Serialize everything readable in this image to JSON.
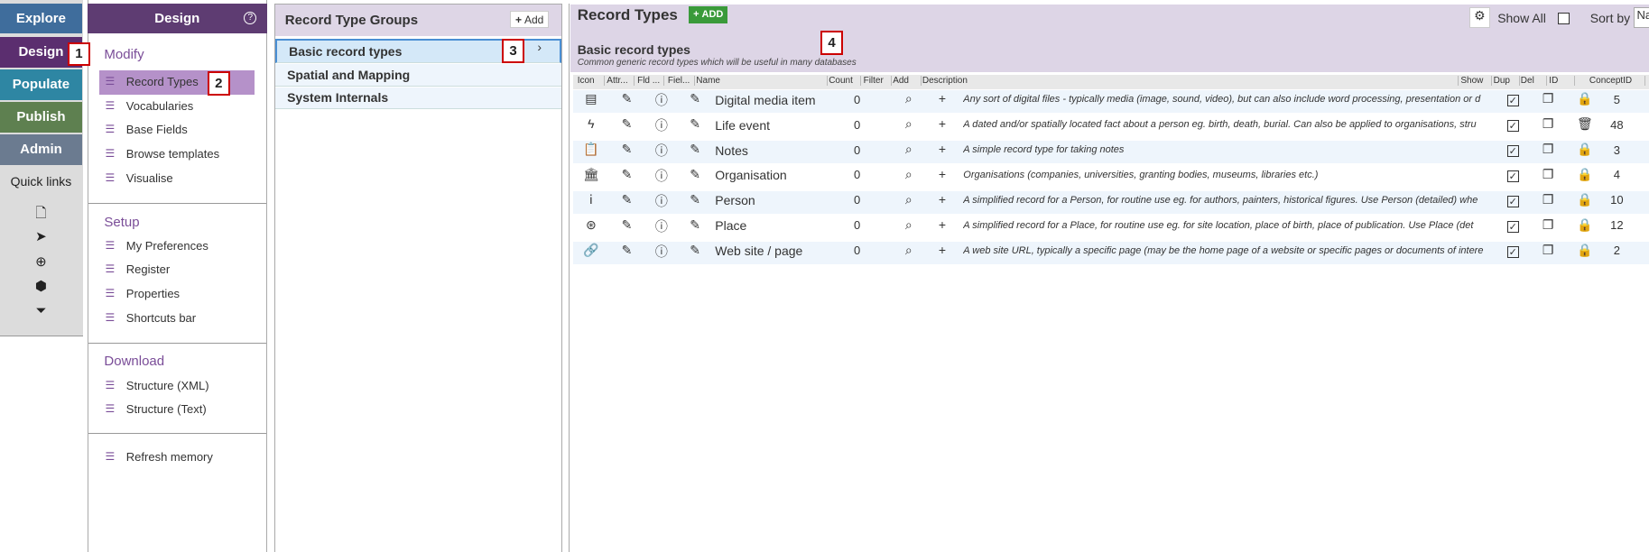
{
  "nav": {
    "items": [
      "Explore",
      "Design",
      "Populate",
      "Publish",
      "Admin"
    ],
    "quick_links_title": "Quick links"
  },
  "design_menu": {
    "title": "Design",
    "sections": [
      {
        "title": "Modify",
        "items": [
          "Record Types",
          "Vocabularies",
          "Base Fields",
          "Browse templates",
          "Visualise"
        ]
      },
      {
        "title": "Setup",
        "items": [
          "My Preferences",
          "Register",
          "Properties",
          "Shortcuts bar"
        ]
      },
      {
        "title": "Download",
        "items": [
          "Structure (XML)",
          "Structure (Text)"
        ]
      },
      {
        "title": null,
        "items": [
          "Refresh memory"
        ]
      }
    ]
  },
  "groups": {
    "title": "Record Type Groups",
    "add_button": "Add",
    "items": [
      "Basic record types",
      "Spatial and Mapping",
      "System Internals"
    ]
  },
  "record_types": {
    "title": "Record Types",
    "add_button": "ADD",
    "show_all": "Show All",
    "sort_by": "Sort by",
    "sort_value": "Na",
    "group_title": "Basic record types",
    "group_description": "Common generic record types which will be useful in many databases",
    "columns": [
      "Icon",
      "Attr...",
      "Fld ...",
      "Fiel...",
      "Name",
      "Count",
      "Filter",
      "Add",
      "Description",
      "Show",
      "Dup",
      "Del",
      "ID",
      "ConceptID"
    ],
    "rows": [
      {
        "name": "Digital media item",
        "count": 0,
        "description": "Any sort of digital files - typically media (image, sound, video), but can also include word processing, presentation or d",
        "concept_id": 5
      },
      {
        "name": "Life event",
        "count": 0,
        "description": "A dated and/or spatially located fact about a person eg. birth, death, burial. Can also be applied to organisations, stru",
        "concept_id": 48
      },
      {
        "name": "Notes",
        "count": 0,
        "description": "A simple record type for taking notes",
        "concept_id": 3
      },
      {
        "name": "Organisation",
        "count": 0,
        "description": "Organisations (companies, universities, granting bodies, museums, libraries etc.)",
        "concept_id": 4
      },
      {
        "name": "Person",
        "count": 0,
        "description": "A simplified record for a Person, for routine use eg. for authors, painters, historical figures. Use Person (detailed) whe",
        "concept_id": 10
      },
      {
        "name": "Place",
        "count": 0,
        "description": "A simplified record for a Place, for routine use eg. for site location, place of birth, place of publication. Use Place (det",
        "concept_id": 12
      },
      {
        "name": "Web site / page",
        "count": 0,
        "description": "A web site URL, typically a specific page (may be the home page of a website or specific pages or documents of intere",
        "concept_id": 2
      }
    ]
  },
  "annotations": [
    "1",
    "2",
    "3",
    "4"
  ]
}
